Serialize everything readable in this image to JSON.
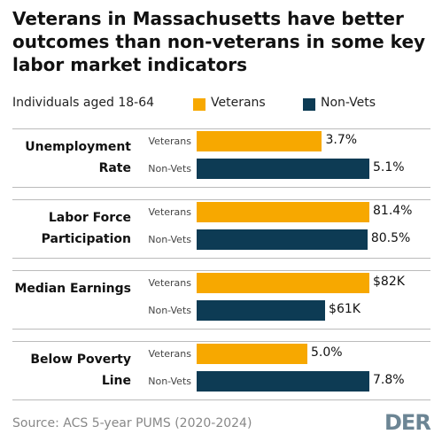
{
  "chart_data": {
    "type": "bar",
    "title": "Veterans in Massachusetts have better outcomes than non-veterans in some key labor market indicators",
    "subtitle": "Individuals aged 18-64",
    "categories": [
      "Unemployment Rate",
      "Labor Force Participation",
      "Median Earnings",
      "Below Poverty Line"
    ],
    "series": [
      {
        "name": "Veterans",
        "color": "#f7a800",
        "values": [
          3.7,
          81.4,
          82000,
          5.0
        ],
        "value_labels": [
          "3.7%",
          "81.4%",
          "$82K",
          "5.0%"
        ]
      },
      {
        "name": "Non-Vets",
        "color": "#0d3b54",
        "values": [
          5.1,
          80.5,
          61000,
          7.8
        ],
        "value_labels": [
          "5.1%",
          "80.5%",
          "$61K",
          "7.8%"
        ]
      }
    ],
    "source": "Source: ACS 5-year PUMS (2020-2024)",
    "logo": "DER"
  }
}
